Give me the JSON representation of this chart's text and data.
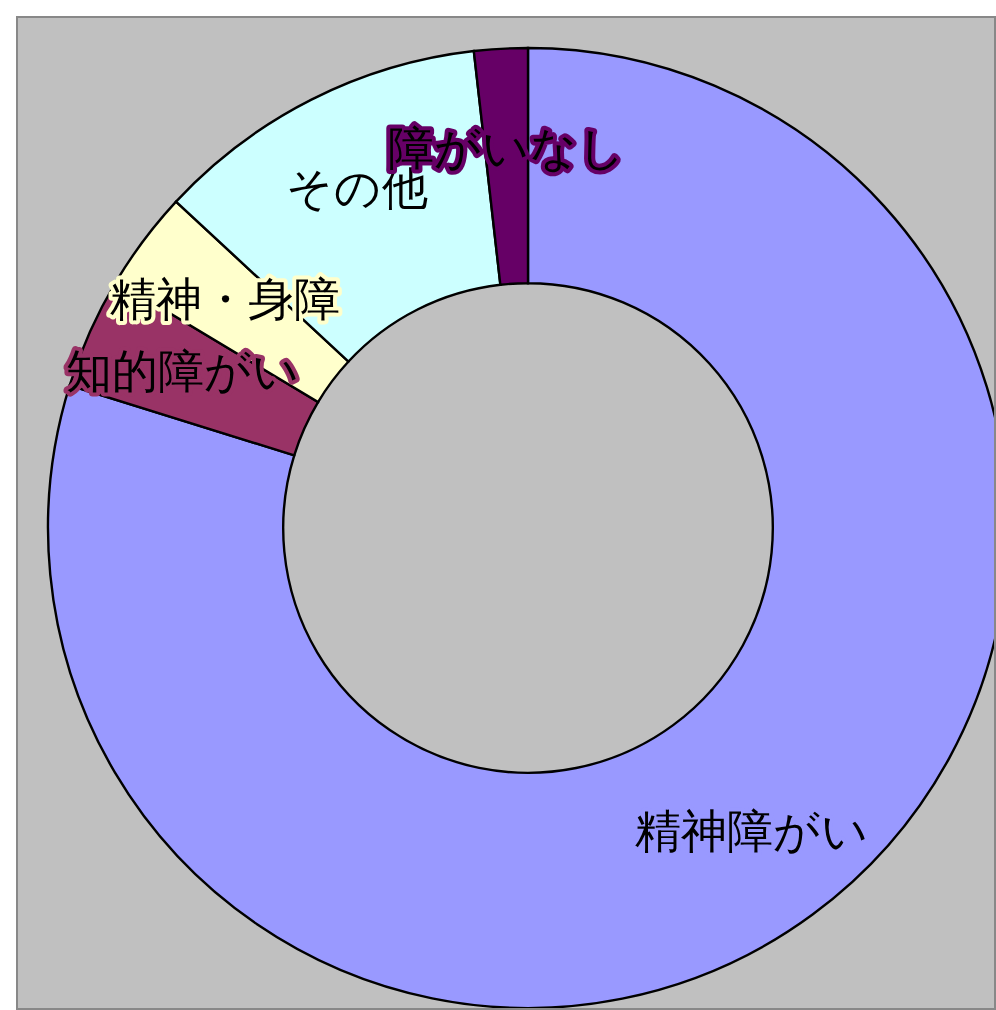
{
  "chart_data": {
    "type": "donut",
    "categories": [
      "精神障がい",
      "知的障がい",
      "精神・身障",
      "その他",
      "障がいなし"
    ],
    "values": [
      79.8,
      3.8,
      3.3,
      11.3,
      1.8
    ],
    "colors": [
      "#9999ff",
      "#993366",
      "#ffffcc",
      "#ccffff",
      "#660066"
    ]
  }
}
